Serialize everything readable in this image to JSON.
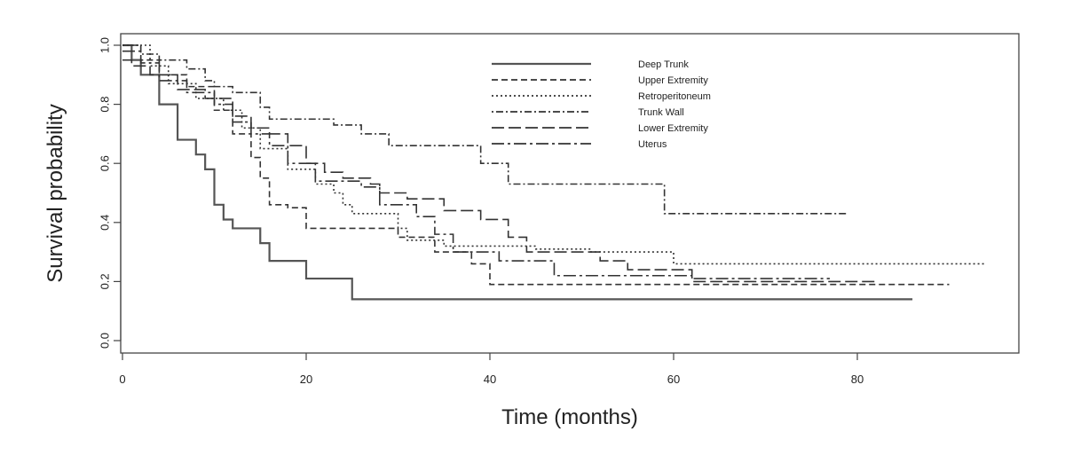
{
  "chart_data": {
    "type": "line",
    "xlabel": "Time (months)",
    "ylabel": "Survival probability",
    "xlim": [
      0,
      95
    ],
    "ylim": [
      0,
      1
    ],
    "x_ticks": [
      "0",
      "20",
      "40",
      "60",
      "80"
    ],
    "y_ticks": [
      "0.0",
      "0.2",
      "0.4",
      "0.6",
      "0.8",
      "1.0"
    ],
    "grid": false,
    "legend_position": "top-center",
    "series": [
      {
        "name": "Deep Trunk",
        "style": "solid",
        "color": "#555555",
        "steps": [
          [
            0,
            1.0
          ],
          [
            1,
            0.95
          ],
          [
            2,
            0.9
          ],
          [
            4,
            0.8
          ],
          [
            6,
            0.68
          ],
          [
            8,
            0.63
          ],
          [
            9,
            0.58
          ],
          [
            10,
            0.46
          ],
          [
            11,
            0.41
          ],
          [
            12,
            0.38
          ],
          [
            15,
            0.33
          ],
          [
            16,
            0.27
          ],
          [
            18,
            0.27
          ],
          [
            20,
            0.21
          ],
          [
            25,
            0.14
          ],
          [
            86,
            0.14
          ]
        ]
      },
      {
        "name": "Upper Extremity",
        "style": "dashed",
        "color": "#333333",
        "steps": [
          [
            0,
            1.0
          ],
          [
            2,
            0.95
          ],
          [
            4,
            0.9
          ],
          [
            7,
            0.86
          ],
          [
            10,
            0.78
          ],
          [
            12,
            0.7
          ],
          [
            14,
            0.62
          ],
          [
            15,
            0.55
          ],
          [
            16,
            0.46
          ],
          [
            18,
            0.45
          ],
          [
            20,
            0.38
          ],
          [
            27,
            0.38
          ],
          [
            30,
            0.35
          ],
          [
            34,
            0.3
          ],
          [
            38,
            0.26
          ],
          [
            40,
            0.19
          ],
          [
            90,
            0.19
          ]
        ]
      },
      {
        "name": "Retroperitoneum",
        "style": "dotted",
        "color": "#333333",
        "steps": [
          [
            0,
            1.0
          ],
          [
            3,
            0.93
          ],
          [
            5,
            0.87
          ],
          [
            8,
            0.82
          ],
          [
            11,
            0.78
          ],
          [
            13,
            0.72
          ],
          [
            15,
            0.65
          ],
          [
            18,
            0.58
          ],
          [
            21,
            0.53
          ],
          [
            23,
            0.5
          ],
          [
            24,
            0.46
          ],
          [
            25,
            0.43
          ],
          [
            28,
            0.43
          ],
          [
            30,
            0.38
          ],
          [
            31,
            0.34
          ],
          [
            33,
            0.34
          ],
          [
            35,
            0.32
          ],
          [
            45,
            0.31
          ],
          [
            51,
            0.3
          ],
          [
            60,
            0.26
          ],
          [
            94,
            0.26
          ]
        ]
      },
      {
        "name": "Trunk Wall",
        "style": "dashdot",
        "color": "#333333",
        "steps": [
          [
            0,
            1.0
          ],
          [
            2,
            0.97
          ],
          [
            4,
            0.95
          ],
          [
            7,
            0.92
          ],
          [
            9,
            0.88
          ],
          [
            10,
            0.86
          ],
          [
            12,
            0.84
          ],
          [
            15,
            0.79
          ],
          [
            16,
            0.75
          ],
          [
            23,
            0.73
          ],
          [
            26,
            0.7
          ],
          [
            29,
            0.66
          ],
          [
            39,
            0.6
          ],
          [
            42,
            0.53
          ],
          [
            59,
            0.43
          ],
          [
            79,
            0.43
          ]
        ]
      },
      {
        "name": "Lower Extremity",
        "style": "longdash",
        "color": "#333333",
        "steps": [
          [
            0,
            0.95
          ],
          [
            1,
            0.93
          ],
          [
            3,
            0.9
          ],
          [
            6,
            0.85
          ],
          [
            9,
            0.82
          ],
          [
            12,
            0.76
          ],
          [
            14,
            0.72
          ],
          [
            16,
            0.7
          ],
          [
            18,
            0.66
          ],
          [
            20,
            0.6
          ],
          [
            22,
            0.57
          ],
          [
            24,
            0.55
          ],
          [
            27,
            0.53
          ],
          [
            28,
            0.5
          ],
          [
            31,
            0.48
          ],
          [
            35,
            0.44
          ],
          [
            39,
            0.41
          ],
          [
            42,
            0.35
          ],
          [
            44,
            0.3
          ],
          [
            52,
            0.27
          ],
          [
            55,
            0.24
          ],
          [
            62,
            0.2
          ],
          [
            82,
            0.2
          ]
        ]
      },
      {
        "name": "Uterus",
        "style": "longdashdot",
        "color": "#333333",
        "steps": [
          [
            0,
            0.98
          ],
          [
            2,
            0.94
          ],
          [
            4,
            0.88
          ],
          [
            7,
            0.84
          ],
          [
            10,
            0.8
          ],
          [
            12,
            0.74
          ],
          [
            14,
            0.7
          ],
          [
            16,
            0.66
          ],
          [
            18,
            0.6
          ],
          [
            21,
            0.54
          ],
          [
            26,
            0.52
          ],
          [
            28,
            0.46
          ],
          [
            32,
            0.42
          ],
          [
            34,
            0.36
          ],
          [
            36,
            0.3
          ],
          [
            41,
            0.27
          ],
          [
            47,
            0.22
          ],
          [
            62,
            0.21
          ],
          [
            77,
            0.21
          ]
        ]
      }
    ]
  }
}
